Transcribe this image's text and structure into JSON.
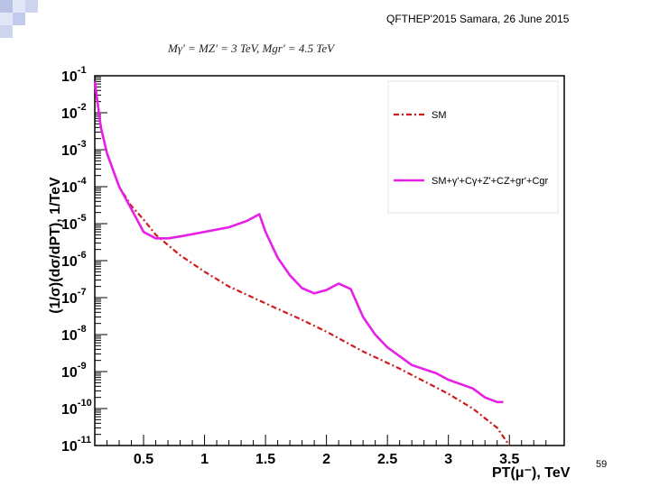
{
  "slide": {
    "header": "QFTHEP'2015 Samara,  26 June 2015",
    "formula": "Mγ' = MZ' = 3 TeV, Mgr' = 4.5 TeV",
    "page_number": "59"
  },
  "chart_data": {
    "type": "line",
    "title": "",
    "xlabel": "PT(μ⁻), TeV",
    "ylabel": "(1/σ)(dσ/dPT), 1/TeV",
    "xlim": [
      0.1,
      3.95
    ],
    "ylim": [
      1e-11,
      0.1
    ],
    "y_scale": "log",
    "x_ticks": [
      0.5,
      1,
      1.5,
      2,
      2.5,
      3,
      3.5
    ],
    "x_tick_labels": [
      "0.5",
      "1",
      "1.5",
      "2",
      "2.5",
      "3",
      "3.5"
    ],
    "y_ticks": [
      1e-11,
      1e-10,
      1e-09,
      1e-08,
      1e-07,
      1e-06,
      1e-05,
      0.0001,
      0.001,
      0.01,
      0.1
    ],
    "y_tick_exponents": [
      "-11",
      "-10",
      "-9",
      "-8",
      "-7",
      "-6",
      "-5",
      "-4",
      "-3",
      "-2",
      "-1"
    ],
    "grid": false,
    "legend_position": "top-right",
    "series": [
      {
        "name": "SM",
        "color": "#d11a1a",
        "style": "dash-dot",
        "x": [
          0.1,
          0.15,
          0.2,
          0.3,
          0.4,
          0.5,
          0.6,
          0.8,
          1.0,
          1.2,
          1.5,
          1.8,
          2.0,
          2.3,
          2.6,
          3.0,
          3.2,
          3.4,
          3.5
        ],
        "y": [
          0.06,
          0.004,
          0.0008,
          0.0001,
          3e-05,
          1.3e-05,
          5e-06,
          1.4e-06,
          5e-07,
          2e-07,
          7e-08,
          2.5e-08,
          1.2e-08,
          3.5e-09,
          1.2e-09,
          2.5e-10,
          1e-10,
          3e-11,
          1e-11
        ]
      },
      {
        "name": "SM+γ'+Cγ+Z'+CZ+gr'+Cgr",
        "color": "#e620e6",
        "style": "solid",
        "x": [
          0.1,
          0.15,
          0.2,
          0.3,
          0.4,
          0.5,
          0.6,
          0.7,
          0.8,
          1.0,
          1.2,
          1.35,
          1.45,
          1.5,
          1.6,
          1.7,
          1.8,
          1.9,
          2.0,
          2.1,
          2.2,
          2.3,
          2.4,
          2.5,
          2.7,
          2.9,
          3.0,
          3.2,
          3.3,
          3.4,
          3.45
        ],
        "y": [
          0.07,
          0.004,
          0.0008,
          0.0001,
          2.5e-05,
          6e-06,
          4e-06,
          4e-06,
          4.5e-06,
          6e-06,
          8e-06,
          1.2e-05,
          1.8e-05,
          6e-06,
          1.2e-06,
          4e-07,
          1.8e-07,
          1.3e-07,
          1.6e-07,
          2.4e-07,
          1.7e-07,
          3e-08,
          1e-08,
          4.5e-09,
          1.5e-09,
          9e-10,
          6e-10,
          3.5e-10,
          2e-10,
          1.5e-10,
          1.5e-10
        ]
      }
    ]
  }
}
